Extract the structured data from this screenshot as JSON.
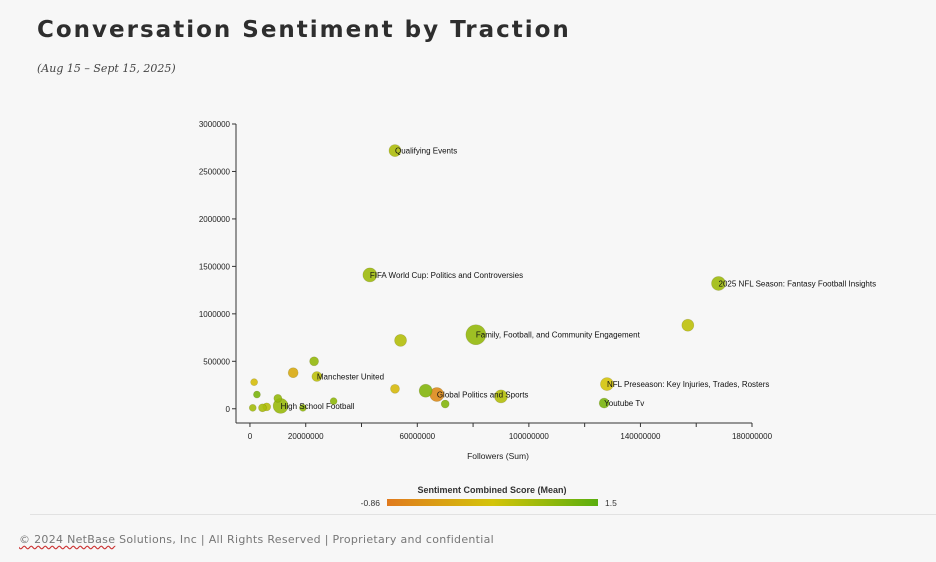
{
  "header": {
    "title": "Conversation Sentiment by Traction",
    "subtitle": "(Aug 15 – Sept 15, 2025)"
  },
  "chart_data": {
    "type": "scatter",
    "title": "Conversation Sentiment by Traction",
    "xlabel": "Followers (Sum)",
    "ylabel": "",
    "xlim": [
      -5000000,
      180000000
    ],
    "ylim": [
      -150000,
      3000000
    ],
    "x_ticks": [
      0,
      20000000,
      60000000,
      100000000,
      140000000,
      180000000
    ],
    "x_tick_labels": [
      "0",
      "20000000",
      "60000000",
      "100000000",
      "140000000",
      "180000000"
    ],
    "y_ticks": [
      0,
      500000,
      1000000,
      1500000,
      2000000,
      2500000,
      3000000
    ],
    "y_tick_labels": [
      "0",
      "500000",
      "1000000",
      "1500000",
      "2000000",
      "2500000",
      "3000000"
    ],
    "color_scale": {
      "title": "Sentiment Combined Score (Mean)",
      "min_label": "-0.86",
      "max_label": "1.5",
      "min": -0.86,
      "max": 1.5,
      "colors": [
        "#e07a1e",
        "#d4c40a",
        "#5aae0e"
      ]
    },
    "points": [
      {
        "label": "Qualifying Events",
        "x": 52000000,
        "y": 2720000,
        "size": 6,
        "sentiment": 0.7
      },
      {
        "label": "FIFA World Cup: Politics and Controversies",
        "x": 43000000,
        "y": 1410000,
        "size": 7,
        "sentiment": 0.85
      },
      {
        "label": "2025 NFL Season: Fantasy Football Insights",
        "x": 168000000,
        "y": 1320000,
        "size": 7,
        "sentiment": 0.85
      },
      {
        "label": "",
        "x": 157000000,
        "y": 880000,
        "size": 6,
        "sentiment": 0.55
      },
      {
        "label": "Family, Football, and Community Engagement",
        "x": 81000000,
        "y": 780000,
        "size": 10,
        "sentiment": 0.95
      },
      {
        "label": "",
        "x": 54000000,
        "y": 720000,
        "size": 6,
        "sentiment": 0.65
      },
      {
        "label": "",
        "x": 23000000,
        "y": 500000,
        "size": 4.5,
        "sentiment": 0.95
      },
      {
        "label": "",
        "x": 15500000,
        "y": 380000,
        "size": 5,
        "sentiment": -0.1
      },
      {
        "label": "Manchester United",
        "x": 24000000,
        "y": 340000,
        "size": 5,
        "sentiment": 0.55
      },
      {
        "label": "",
        "x": 1500000,
        "y": 280000,
        "size": 3.5,
        "sentiment": 0.2
      },
      {
        "label": "NFL Preseason: Key Injuries, Trades, Rosters",
        "x": 128000000,
        "y": 260000,
        "size": 6.5,
        "sentiment": 0.3
      },
      {
        "label": "",
        "x": 52000000,
        "y": 210000,
        "size": 4.5,
        "sentiment": 0.15
      },
      {
        "label": "",
        "x": 63000000,
        "y": 190000,
        "size": 6.5,
        "sentiment": 1.1
      },
      {
        "label": "Global Politics and Sports",
        "x": 67000000,
        "y": 150000,
        "size": 7,
        "sentiment": -0.6
      },
      {
        "label": "",
        "x": 2500000,
        "y": 150000,
        "size": 3.5,
        "sentiment": 1.2
      },
      {
        "label": "",
        "x": 90000000,
        "y": 130000,
        "size": 6.5,
        "sentiment": 0.65
      },
      {
        "label": "",
        "x": 10000000,
        "y": 110000,
        "size": 4,
        "sentiment": 0.95
      },
      {
        "label": "",
        "x": 30000000,
        "y": 80000,
        "size": 3.5,
        "sentiment": 1.0
      },
      {
        "label": "",
        "x": 70000000,
        "y": 50000,
        "size": 4,
        "sentiment": 1.1
      },
      {
        "label": "Youtube Tv",
        "x": 127000000,
        "y": 60000,
        "size": 5,
        "sentiment": 1.2
      },
      {
        "label": "High School Football",
        "x": 11000000,
        "y": 30000,
        "size": 7.5,
        "sentiment": 0.9
      },
      {
        "label": "",
        "x": 6000000,
        "y": 20000,
        "size": 4,
        "sentiment": 0.6
      },
      {
        "label": "",
        "x": 1000000,
        "y": 10000,
        "size": 3.5,
        "sentiment": 0.8
      },
      {
        "label": "",
        "x": 4500000,
        "y": 10000,
        "size": 4,
        "sentiment": 0.75
      },
      {
        "label": "",
        "x": 19000000,
        "y": 10000,
        "size": 3.5,
        "sentiment": 1.0
      }
    ]
  },
  "footer": {
    "brand": "© 2024 NetBase",
    "text": " Solutions, Inc | All Rights Reserved | Proprietary and confidential"
  }
}
